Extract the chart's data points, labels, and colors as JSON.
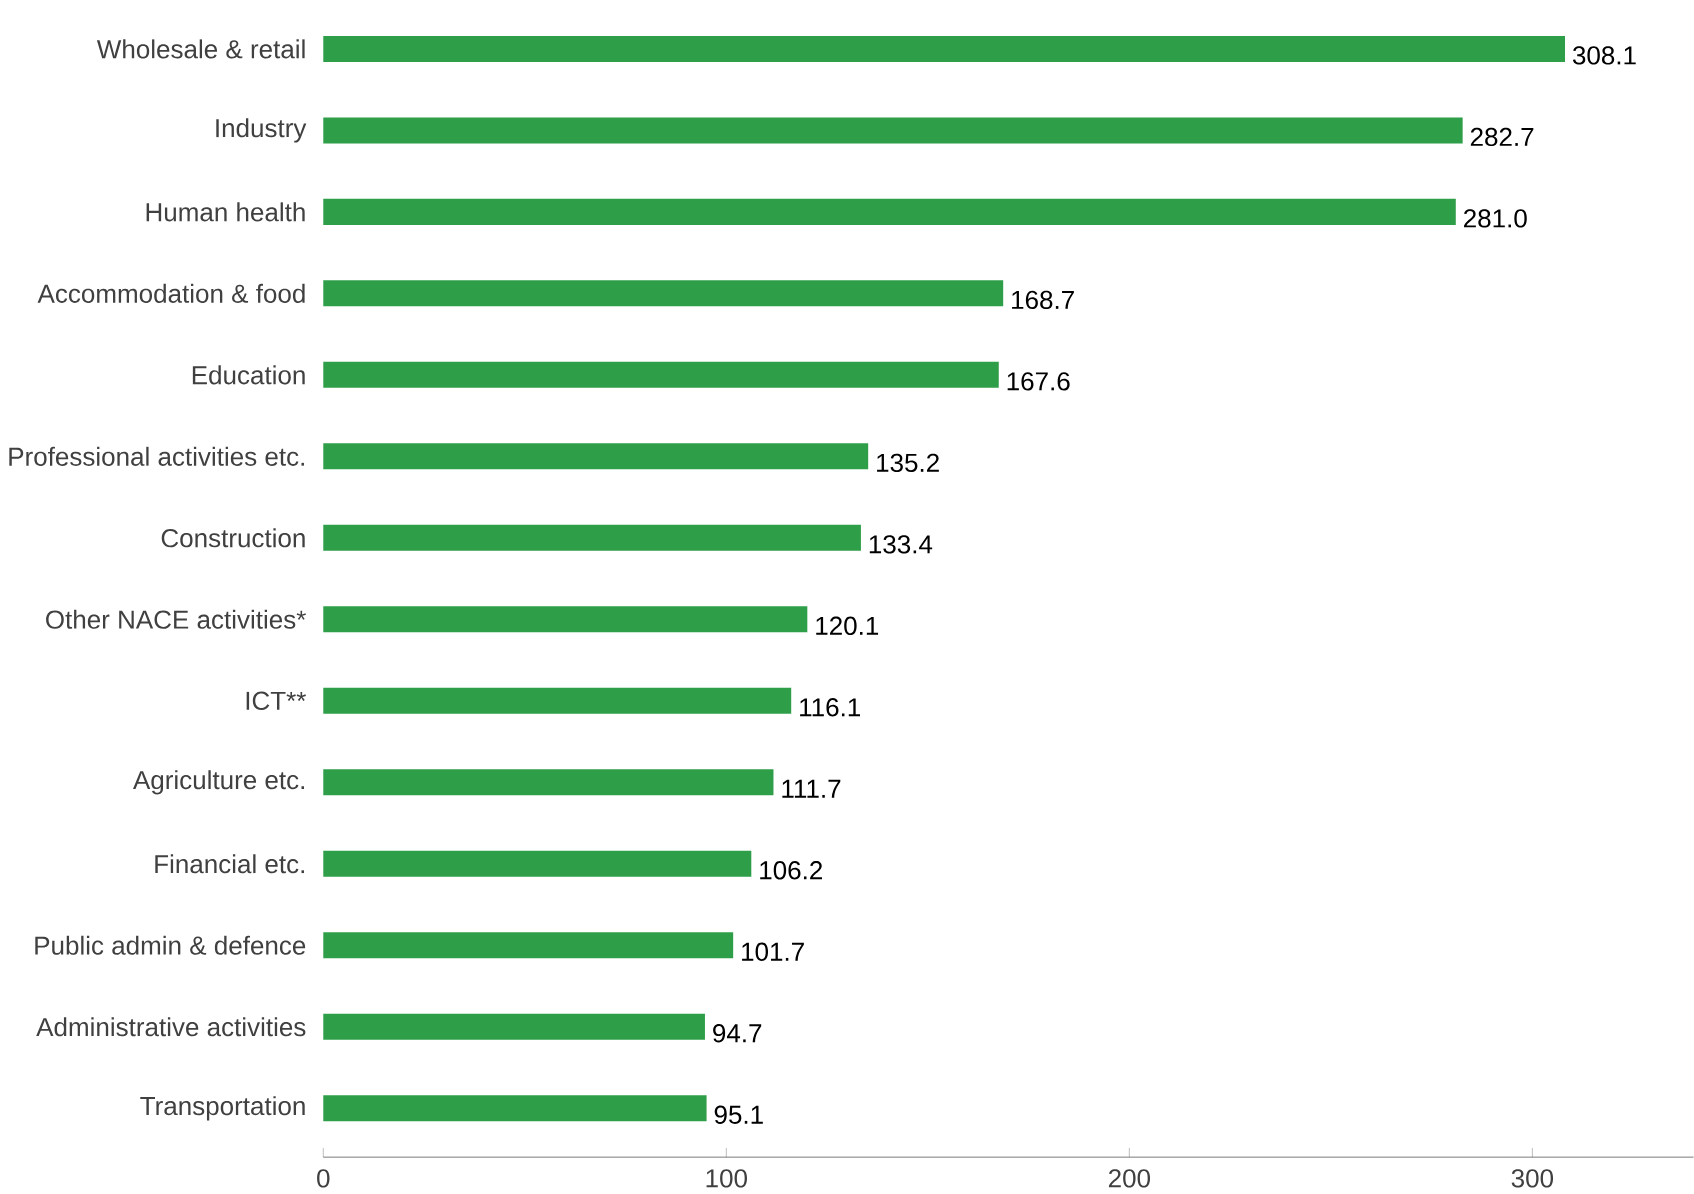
{
  "chart_data": {
    "type": "bar",
    "orientation": "horizontal",
    "categories": [
      "Wholesale & retail",
      "Industry",
      "Human health",
      "Accommodation & food",
      "Education",
      "Professional activities etc.",
      "Construction",
      "Other NACE activities*",
      "ICT**",
      "Agriculture etc.",
      "Financial etc.",
      "Public admin & defence",
      "Administrative activities",
      "Transportation"
    ],
    "values": [
      308.1,
      282.7,
      281.0,
      168.7,
      167.6,
      135.2,
      133.4,
      120.1,
      116.1,
      111.7,
      106.2,
      101.7,
      94.7,
      95.1
    ],
    "value_labels": [
      "308.1",
      "282.7",
      "281.0",
      "168.7",
      "167.6",
      "135.2",
      "133.4",
      "120.1",
      "116.1",
      "111.7",
      "106.2",
      "101.7",
      "94.7",
      "95.1"
    ],
    "color": "#2e9e48",
    "xlim": [
      0,
      340
    ],
    "xticks": [
      0,
      100,
      200,
      300
    ],
    "grid": false
  }
}
